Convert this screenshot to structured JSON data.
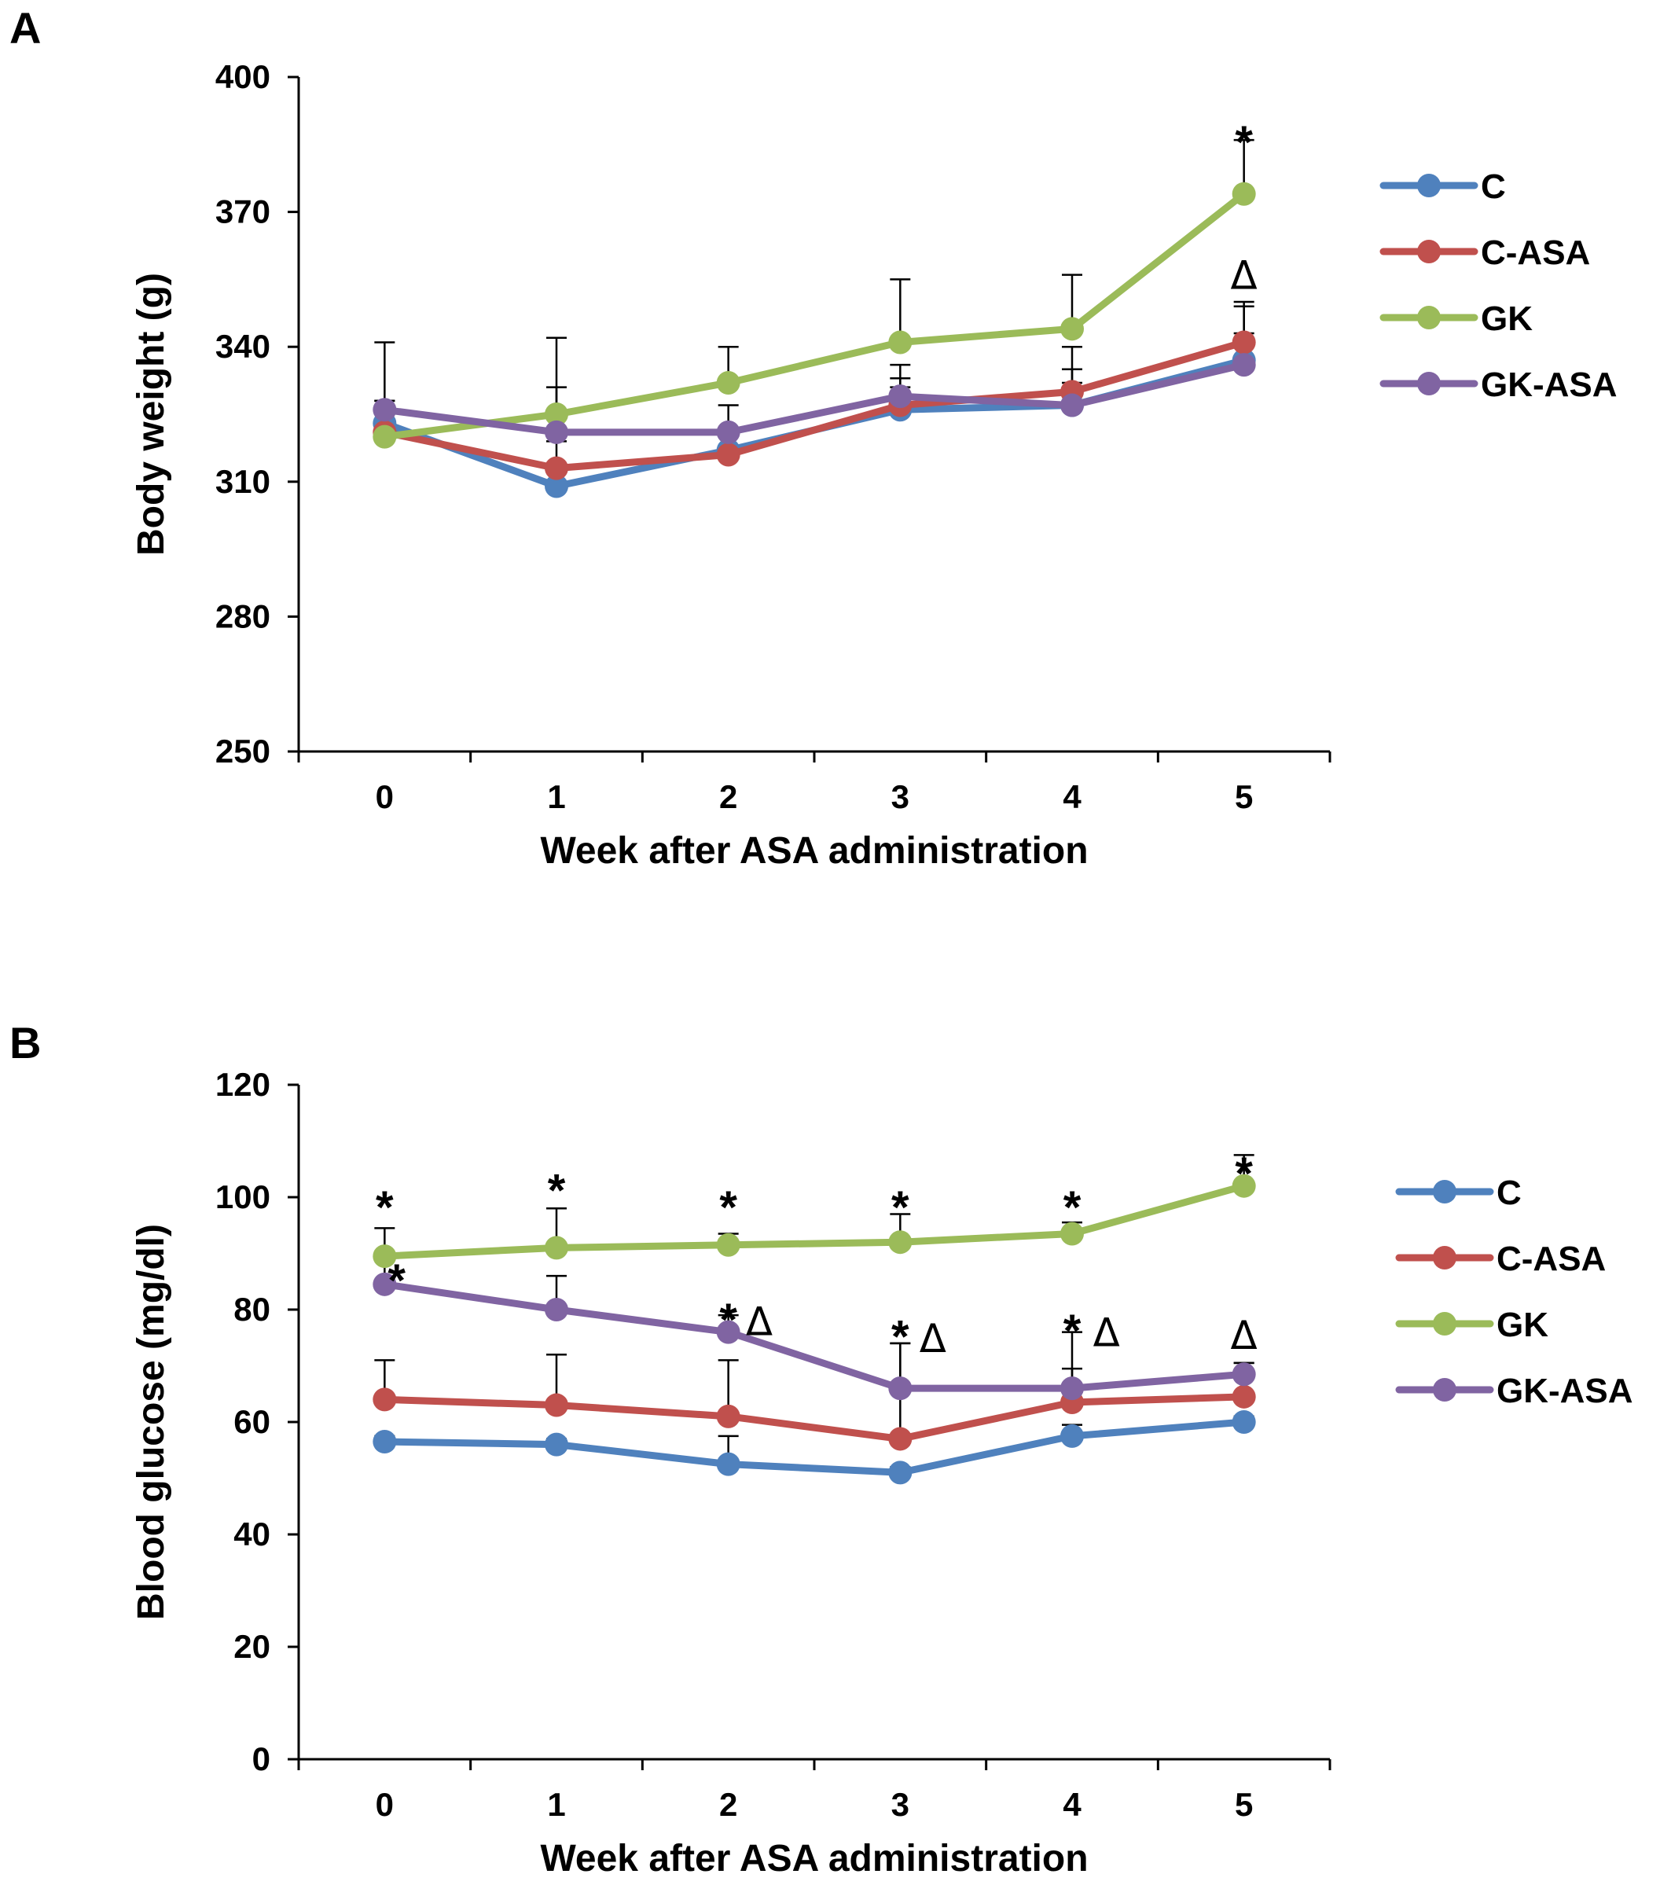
{
  "chart_data": [
    {
      "type": "line",
      "panel_label": "A",
      "title": "",
      "xlabel": "Week after ASA administration",
      "ylabel": "Body weight (g)",
      "categories": [
        "0",
        "1",
        "2",
        "3",
        "4",
        "5"
      ],
      "x": [
        0,
        1,
        2,
        3,
        4,
        5
      ],
      "ylim": [
        250,
        400
      ],
      "yticks": [
        "250",
        "280",
        "310",
        "340",
        "370",
        "400"
      ],
      "ytick_values": [
        250,
        280,
        310,
        340,
        370,
        400
      ],
      "legend_position": "right",
      "series": [
        {
          "name": "C",
          "color": "#4f81bd",
          "values": [
            323,
            309,
            317,
            326,
            327,
            337
          ],
          "errors": [
            5,
            5,
            5,
            5,
            5,
            6
          ]
        },
        {
          "name": "C-ASA",
          "color": "#c0504d",
          "values": [
            321,
            313,
            316,
            327,
            330,
            341
          ],
          "errors": [
            7,
            6,
            5,
            6,
            10,
            8
          ]
        },
        {
          "name": "GK",
          "color": "#9bbb59",
          "values": [
            320,
            325,
            332,
            341,
            344,
            374
          ],
          "errors": [
            7,
            17,
            8,
            14,
            12,
            12
          ]
        },
        {
          "name": "GK-ASA",
          "color": "#8064a2",
          "values": [
            326,
            321,
            321,
            329,
            327,
            336
          ],
          "errors": [
            15,
            10,
            6,
            7,
            8,
            14
          ]
        }
      ],
      "annotations": [
        {
          "x": 5,
          "y": 389,
          "text": "*",
          "kind": "star"
        },
        {
          "x": 5,
          "y": 356,
          "text": "Δ",
          "kind": "delta"
        }
      ]
    },
    {
      "type": "line",
      "panel_label": "B",
      "title": "",
      "xlabel": "Week after ASA administration",
      "ylabel": "Blood glucose (mg/dl)",
      "categories": [
        "0",
        "1",
        "2",
        "3",
        "4",
        "5"
      ],
      "x": [
        0,
        1,
        2,
        3,
        4,
        5
      ],
      "ylim": [
        0,
        120
      ],
      "yticks": [
        "0",
        "20",
        "40",
        "60",
        "80",
        "100",
        "120"
      ],
      "ytick_values": [
        0,
        20,
        40,
        60,
        80,
        100,
        120
      ],
      "legend_position": "right",
      "series": [
        {
          "name": "C",
          "color": "#4f81bd",
          "values": [
            56.5,
            56,
            52.5,
            51,
            57.5,
            60
          ],
          "errors": [
            1,
            1,
            5,
            1,
            2,
            1
          ]
        },
        {
          "name": "C-ASA",
          "color": "#c0504d",
          "values": [
            64,
            63,
            61,
            57,
            63.5,
            64.5
          ],
          "errors": [
            7,
            9,
            10,
            17,
            6,
            6
          ]
        },
        {
          "name": "GK",
          "color": "#9bbb59",
          "values": [
            89.5,
            91,
            91.5,
            92,
            93.5,
            102
          ],
          "errors": [
            5,
            7,
            2,
            5,
            2,
            5.5
          ]
        },
        {
          "name": "GK-ASA",
          "color": "#8064a2",
          "values": [
            84.5,
            80,
            76,
            66,
            66,
            68.5
          ],
          "errors": [
            5,
            6,
            3,
            8,
            10,
            2
          ]
        }
      ],
      "annotations": [
        {
          "x": 0,
          "y": 101,
          "text": "*",
          "kind": "star"
        },
        {
          "x": 0,
          "y": 88,
          "text": "*",
          "kind": "star",
          "dx": 0.07
        },
        {
          "x": 1,
          "y": 104,
          "text": "*",
          "kind": "star"
        },
        {
          "x": 2,
          "y": 101,
          "text": "*",
          "kind": "star"
        },
        {
          "x": 2,
          "y": 81,
          "text": "*",
          "kind": "star"
        },
        {
          "x": 2,
          "y": 78,
          "text": "Δ",
          "kind": "delta",
          "dx": 0.18
        },
        {
          "x": 3,
          "y": 101,
          "text": "*",
          "kind": "star"
        },
        {
          "x": 3,
          "y": 78,
          "text": "*",
          "kind": "star"
        },
        {
          "x": 3,
          "y": 75,
          "text": "Δ",
          "kind": "delta",
          "dx": 0.19
        },
        {
          "x": 4,
          "y": 101,
          "text": "*",
          "kind": "star"
        },
        {
          "x": 4,
          "y": 79,
          "text": "*",
          "kind": "star"
        },
        {
          "x": 4,
          "y": 76,
          "text": "Δ",
          "kind": "delta",
          "dx": 0.2
        },
        {
          "x": 5,
          "y": 107,
          "text": "*",
          "kind": "star"
        },
        {
          "x": 5,
          "y": 75.5,
          "text": "Δ",
          "kind": "delta"
        }
      ]
    }
  ]
}
